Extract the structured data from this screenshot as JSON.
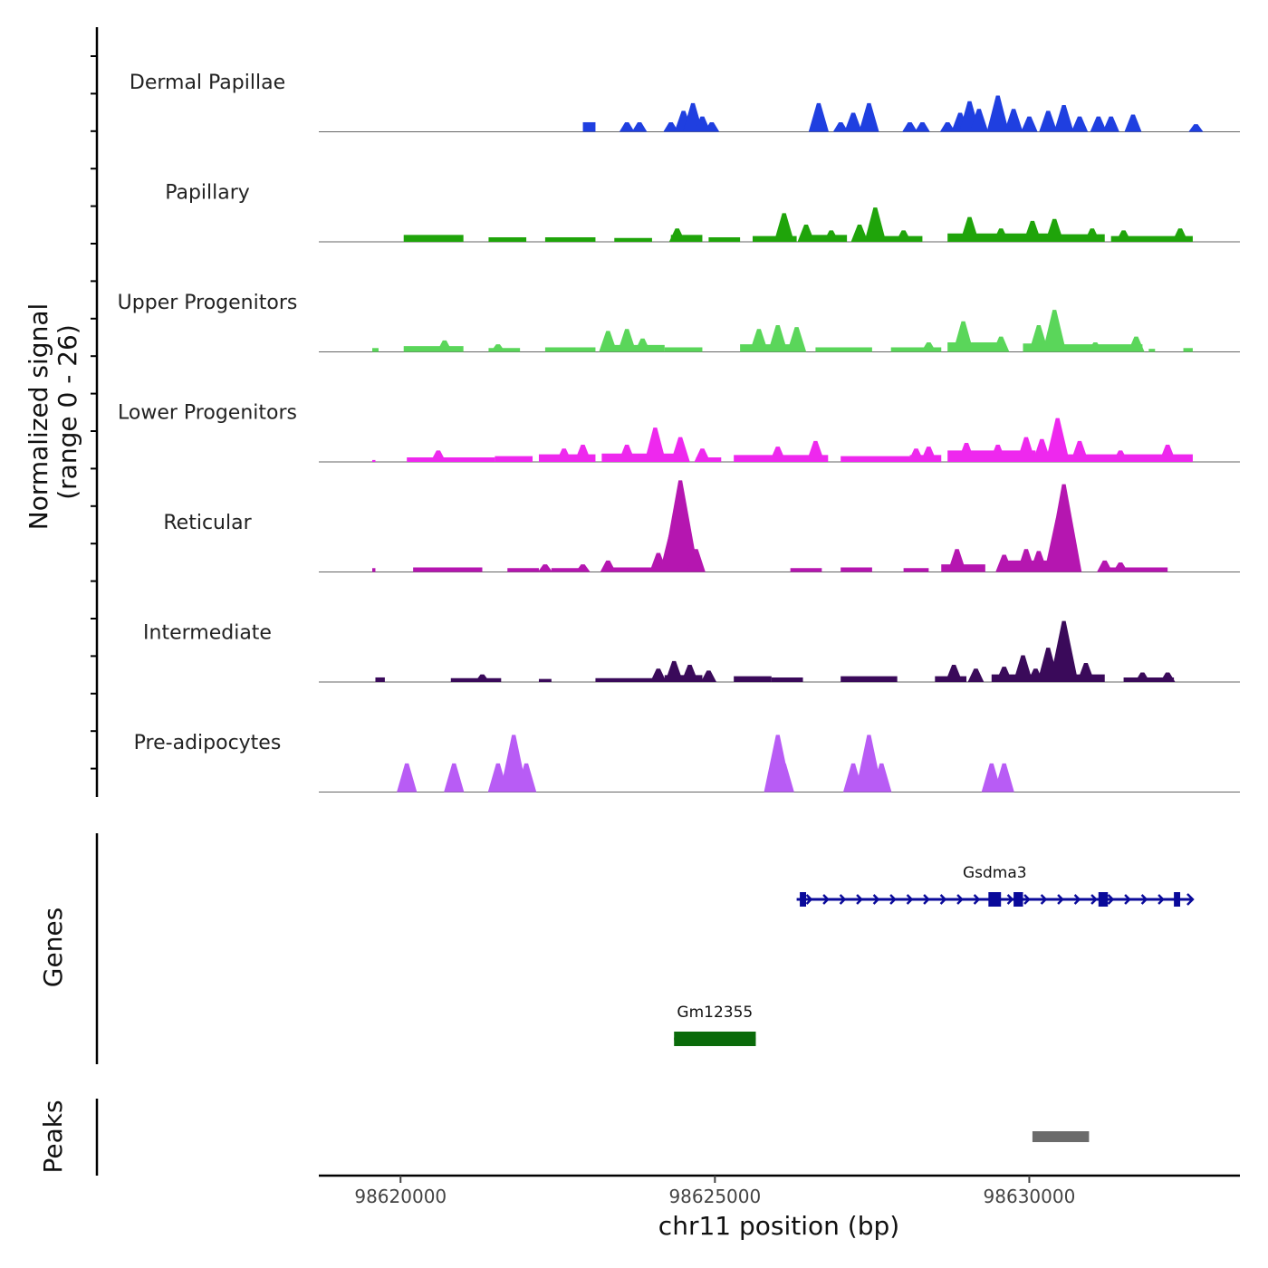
{
  "chart_data": {
    "type": "area",
    "y_axis_title_line1": "Normalized signal",
    "y_axis_title_line2": "(range 0 - 26)",
    "y_range": [
      0,
      26
    ],
    "x_axis_title": "chr11 position (bp)",
    "x_range": [
      98618700,
      98633350
    ],
    "x_ticks": [
      98620000,
      98625000,
      98630000
    ],
    "x_tick_labels": [
      "98620000",
      "98625000",
      "98630000"
    ],
    "tracks": [
      {
        "name": "Dermal Papillae",
        "color": "#1f3fe0",
        "segments": [
          [
            98622900,
            98623100,
            2.5
          ]
        ],
        "peaks": [
          [
            98623600,
            2.5
          ],
          [
            98623800,
            2.5
          ],
          [
            98624300,
            2.5
          ],
          [
            98624500,
            5.5
          ],
          [
            98624650,
            7.5
          ],
          [
            98624800,
            4.0
          ],
          [
            98624950,
            2.5
          ],
          [
            98626650,
            7.5
          ],
          [
            98627000,
            2.5
          ],
          [
            98627200,
            5.0
          ],
          [
            98627450,
            7.5
          ],
          [
            98628100,
            2.5
          ],
          [
            98628300,
            2.5
          ],
          [
            98628700,
            2.5
          ],
          [
            98628900,
            5.0
          ],
          [
            98629050,
            8.0
          ],
          [
            98629200,
            6.0
          ],
          [
            98629500,
            9.5
          ],
          [
            98629750,
            6.0
          ],
          [
            98630000,
            4.0
          ],
          [
            98630300,
            5.5
          ],
          [
            98630550,
            7.0
          ],
          [
            98630800,
            4.0
          ],
          [
            98631100,
            4.0
          ],
          [
            98631300,
            4.0
          ],
          [
            98631650,
            4.5
          ],
          [
            98632650,
            2.0
          ]
        ]
      },
      {
        "name": "Papillary",
        "color": "#1fa40a",
        "segments": [
          [
            98620050,
            98621000,
            1.8
          ],
          [
            98621400,
            98622000,
            1.2
          ],
          [
            98622300,
            98623100,
            1.2
          ],
          [
            98623400,
            98624000,
            1.0
          ],
          [
            98624300,
            98624800,
            1.8
          ],
          [
            98624900,
            98625400,
            1.2
          ],
          [
            98625600,
            98626300,
            1.5
          ],
          [
            98626500,
            98627100,
            1.8
          ],
          [
            98627400,
            98628300,
            1.5
          ],
          [
            98628700,
            98630300,
            2.2
          ],
          [
            98630400,
            98631200,
            2.0
          ],
          [
            98631300,
            98632600,
            1.5
          ]
        ],
        "peaks": [
          [
            98624400,
            3.5
          ],
          [
            98626100,
            7.5
          ],
          [
            98626450,
            4.5
          ],
          [
            98626850,
            3.0
          ],
          [
            98627300,
            4.5
          ],
          [
            98627550,
            9.0
          ],
          [
            98628000,
            3.0
          ],
          [
            98629050,
            6.5
          ],
          [
            98629550,
            3.5
          ],
          [
            98630050,
            5.5
          ],
          [
            98630400,
            6.0
          ],
          [
            98631000,
            3.5
          ],
          [
            98631500,
            3.0
          ],
          [
            98632400,
            3.5
          ]
        ]
      },
      {
        "name": "Upper Progenitors",
        "color": "#5ad65a",
        "segments": [
          [
            98619550,
            98619650,
            1.0
          ],
          [
            98620050,
            98621000,
            1.5
          ],
          [
            98621400,
            98621900,
            1.0
          ],
          [
            98622300,
            98623100,
            1.2
          ],
          [
            98623200,
            98624200,
            1.8
          ],
          [
            98624200,
            98624800,
            1.2
          ],
          [
            98625400,
            98626400,
            2.0
          ],
          [
            98626600,
            98627500,
            1.2
          ],
          [
            98627800,
            98628600,
            1.2
          ],
          [
            98628700,
            98629600,
            2.5
          ],
          [
            98629900,
            98630500,
            2.2
          ],
          [
            98630500,
            98631800,
            2.0
          ],
          [
            98631900,
            98632000,
            0.8
          ],
          [
            98632450,
            98632600,
            1.0
          ]
        ],
        "peaks": [
          [
            98620700,
            3.0
          ],
          [
            98621550,
            2.0
          ],
          [
            98623300,
            5.5
          ],
          [
            98623600,
            6.0
          ],
          [
            98623850,
            3.5
          ],
          [
            98625700,
            6.0
          ],
          [
            98626000,
            7.0
          ],
          [
            98626300,
            6.5
          ],
          [
            98628400,
            2.5
          ],
          [
            98628950,
            8.0
          ],
          [
            98629550,
            4.0
          ],
          [
            98630150,
            7.0
          ],
          [
            98630400,
            11.0
          ],
          [
            98631050,
            2.5
          ],
          [
            98631700,
            4.0
          ]
        ]
      },
      {
        "name": "Lower Progenitors",
        "color": "#ee28ee",
        "segments": [
          [
            98619550,
            98619600,
            0.5
          ],
          [
            98620100,
            98621500,
            1.2
          ],
          [
            98621500,
            98622100,
            1.5
          ],
          [
            98622200,
            98623100,
            2.0
          ],
          [
            98623200,
            98624500,
            2.2
          ],
          [
            98624700,
            98625100,
            1.2
          ],
          [
            98625300,
            98626800,
            1.8
          ],
          [
            98627000,
            98628100,
            1.5
          ],
          [
            98628100,
            98628600,
            1.8
          ],
          [
            98628700,
            98630100,
            3.0
          ],
          [
            98630300,
            98632600,
            2.0
          ]
        ],
        "peaks": [
          [
            98620600,
            3.0
          ],
          [
            98622600,
            3.5
          ],
          [
            98622900,
            4.5
          ],
          [
            98623600,
            4.5
          ],
          [
            98624050,
            9.0
          ],
          [
            98624450,
            6.5
          ],
          [
            98624800,
            3.5
          ],
          [
            98626000,
            4.0
          ],
          [
            98626600,
            5.5
          ],
          [
            98628200,
            3.5
          ],
          [
            98628400,
            4.0
          ],
          [
            98629000,
            5.0
          ],
          [
            98629500,
            4.5
          ],
          [
            98629950,
            6.5
          ],
          [
            98630200,
            6.0
          ],
          [
            98630450,
            11.5
          ],
          [
            98630800,
            5.5
          ],
          [
            98631450,
            3.0
          ],
          [
            98632200,
            4.5
          ]
        ]
      },
      {
        "name": "Reticular",
        "color": "#b516b0",
        "segments": [
          [
            98619550,
            98619600,
            1.0
          ],
          [
            98620200,
            98621300,
            1.2
          ],
          [
            98621700,
            98622200,
            1.0
          ],
          [
            98622400,
            98622900,
            1.0
          ],
          [
            98623300,
            98624100,
            1.2
          ],
          [
            98624200,
            98624700,
            4.0
          ],
          [
            98626200,
            98626700,
            1.0
          ],
          [
            98627000,
            98627500,
            1.2
          ],
          [
            98628000,
            98628400,
            1.0
          ],
          [
            98628600,
            98629300,
            2.0
          ],
          [
            98629600,
            98630700,
            3.0
          ],
          [
            98631200,
            98632200,
            1.2
          ]
        ],
        "peaks": [
          [
            98622300,
            2.0
          ],
          [
            98622900,
            2.0
          ],
          [
            98623300,
            3.0
          ],
          [
            98624100,
            5.0
          ],
          [
            98624300,
            10.0
          ],
          [
            98624450,
            24.0
          ],
          [
            98624700,
            6.0
          ],
          [
            98628850,
            6.0
          ],
          [
            98629600,
            4.5
          ],
          [
            98629950,
            6.0
          ],
          [
            98630150,
            5.5
          ],
          [
            98630450,
            14.0
          ],
          [
            98630550,
            23.0
          ],
          [
            98631200,
            3.0
          ],
          [
            98631450,
            2.5
          ]
        ]
      },
      {
        "name": "Intermediate",
        "color": "#3a0a5a",
        "segments": [
          [
            98619600,
            98619750,
            1.2
          ],
          [
            98620800,
            98621600,
            1.0
          ],
          [
            98622200,
            98622400,
            0.8
          ],
          [
            98623100,
            98624200,
            1.0
          ],
          [
            98624200,
            98624800,
            1.8
          ],
          [
            98625300,
            98625900,
            1.5
          ],
          [
            98625900,
            98626400,
            1.2
          ],
          [
            98627000,
            98627900,
            1.5
          ],
          [
            98628500,
            98629000,
            1.5
          ],
          [
            98629400,
            98631200,
            2.0
          ],
          [
            98631500,
            98632300,
            1.2
          ]
        ],
        "peaks": [
          [
            98621300,
            2.0
          ],
          [
            98624100,
            3.5
          ],
          [
            98624350,
            5.5
          ],
          [
            98624600,
            4.5
          ],
          [
            98624900,
            3.0
          ],
          [
            98628800,
            4.5
          ],
          [
            98629150,
            3.5
          ],
          [
            98629600,
            4.0
          ],
          [
            98629900,
            7.0
          ],
          [
            98630100,
            3.5
          ],
          [
            98630300,
            9.0
          ],
          [
            98630550,
            16.0
          ],
          [
            98630900,
            5.0
          ],
          [
            98631800,
            2.5
          ],
          [
            98632200,
            2.5
          ]
        ]
      },
      {
        "name": "Pre-adipocytes",
        "color": "#b85cf5",
        "segments": [],
        "peaks": [
          [
            98620100,
            7.5
          ],
          [
            98620850,
            7.5
          ],
          [
            98621550,
            7.5
          ],
          [
            98621800,
            15.0
          ],
          [
            98622000,
            7.5
          ],
          [
            98626000,
            15.0
          ],
          [
            98626100,
            7.5
          ],
          [
            98627200,
            7.5
          ],
          [
            98627450,
            15.0
          ],
          [
            98627650,
            7.5
          ],
          [
            98629400,
            7.5
          ],
          [
            98629600,
            7.5
          ]
        ]
      }
    ],
    "genes_panel_title": "Genes",
    "genes": [
      {
        "name": "Gsdma3",
        "color": "#0a0a9a",
        "strand": "+",
        "start": 98626300,
        "end": 98632600,
        "exons": [
          [
            98626350,
            98626450
          ],
          [
            98629350,
            98629550
          ],
          [
            98629750,
            98629900
          ],
          [
            98631100,
            98631250
          ],
          [
            98632300,
            98632400
          ]
        ]
      },
      {
        "name": "Gm12355",
        "color": "#0a6a0a",
        "strand": "+",
        "start": 98624350,
        "end": 98625650,
        "exons": [
          [
            98624350,
            98625650
          ]
        ]
      }
    ],
    "peaks_panel_title": "Peaks",
    "called_peaks": [
      {
        "start": 98630050,
        "end": 98630950,
        "color": "#6b6b6b"
      }
    ]
  }
}
